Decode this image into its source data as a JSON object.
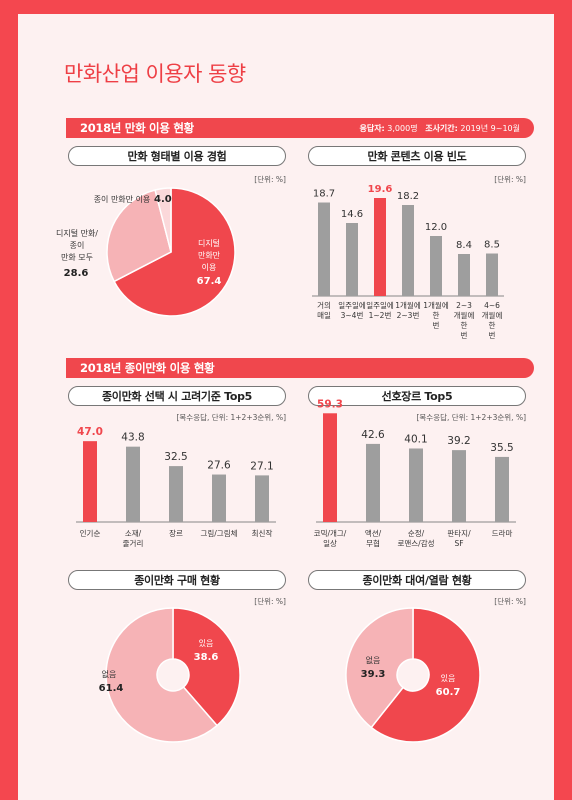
{
  "page_title": "만화산업 이용자 동향",
  "section1": {
    "title": "2018년 만화 이용 현황",
    "sample_label": "응답자:",
    "sample_value": "3,000명",
    "period_label": "조사기간:",
    "period_value": "2019년 9~10월"
  },
  "section2": {
    "title": "2018년 종이만화 이용 현황"
  },
  "units": {
    "percent": "[단위: %]",
    "multi": "[복수응답, 단위: 1+2+3순위, %]"
  },
  "colors": {
    "accent": "#f0474d",
    "light": "#f6b3b6",
    "pale": "#fbd8da",
    "gray": "#9e9e9e"
  },
  "chart_data": [
    {
      "id": "form_experience",
      "type": "pie",
      "title": "만화 형태별 이용 경험",
      "unit": "[단위: %]",
      "slices": [
        {
          "label": "디지털 만화만 이용",
          "value": 67.4,
          "color": "#f0474d"
        },
        {
          "label": "디지털 만화/ 종이 만화 모두 이용",
          "value": 28.6,
          "color": "#f6b3b6"
        },
        {
          "label": "종이 만화만 이용",
          "value": 4.0,
          "color": "#fbd8da"
        }
      ]
    },
    {
      "id": "content_frequency",
      "type": "bar",
      "title": "만화 콘텐츠 이용 빈도",
      "unit": "[단위: %]",
      "categories": [
        "거의 매일",
        "일주일에 3~4번",
        "일주일에 1~2번",
        "1개월에 2~3번",
        "1개월에 한 번",
        "2~3 개월에 한 번",
        "4~6 개월에 한 번"
      ],
      "values": [
        18.7,
        14.6,
        19.6,
        18.2,
        12.0,
        8.4,
        8.5
      ],
      "value_labels": [
        "18.7",
        "14.6",
        "19.6",
        "18.2",
        "12.0",
        "8.4",
        "8.5"
      ],
      "highlight_index": 2,
      "ylim": [
        0,
        20
      ]
    },
    {
      "id": "selection_criteria",
      "type": "bar",
      "title": "종이만화 선택 시 고려기준 Top5",
      "unit": "[복수응답, 단위: 1+2+3순위, %]",
      "categories": [
        "인기순",
        "소재/ 줄거리",
        "장르",
        "그림/그림체",
        "최신작"
      ],
      "values": [
        47.0,
        43.8,
        32.5,
        27.6,
        27.1
      ],
      "value_labels": [
        "47.0",
        "43.8",
        "32.5",
        "27.6",
        "27.1"
      ],
      "highlight_index": 0,
      "ylim": [
        0,
        50
      ]
    },
    {
      "id": "preferred_genre",
      "type": "bar",
      "title": "선호장르 Top5",
      "unit": "[복수응답, 단위: 1+2+3순위, %]",
      "categories": [
        "코믹/개그/ 일상",
        "액션/ 무협",
        "순정/ 로맨스/감성",
        "판타지/ SF",
        "드라마"
      ],
      "values": [
        59.3,
        42.6,
        40.1,
        39.2,
        35.5
      ],
      "value_labels": [
        "59.3",
        "42.6",
        "40.1",
        "39.2",
        "35.5"
      ],
      "highlight_index": 0,
      "ylim": [
        0,
        60
      ]
    },
    {
      "id": "purchase_status",
      "type": "pie",
      "title": "종이만화 구매 현황",
      "unit": "[단위: %]",
      "slices": [
        {
          "label": "있음",
          "value": 38.6,
          "color": "#f0474d"
        },
        {
          "label": "없음",
          "value": 61.4,
          "color": "#f6b3b6"
        }
      ]
    },
    {
      "id": "rental_status",
      "type": "pie",
      "title": "종이만화 대여/열람 현황",
      "unit": "[단위: %]",
      "slices": [
        {
          "label": "있음",
          "value": 60.7,
          "color": "#f0474d"
        },
        {
          "label": "없음",
          "value": 39.3,
          "color": "#f6b3b6"
        }
      ]
    }
  ]
}
